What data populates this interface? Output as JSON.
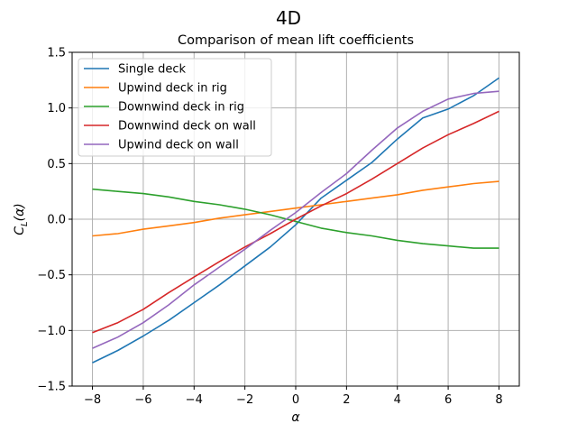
{
  "chart_data": {
    "type": "line",
    "suptitle": "4D",
    "title": "Comparison of mean lift coefficients",
    "xlabel": "α",
    "ylabel": "C_L(α)",
    "xlim": [
      -8.8,
      8.8
    ],
    "ylim": [
      -1.5,
      1.5
    ],
    "xticks": [
      -8,
      -6,
      -4,
      -2,
      0,
      2,
      4,
      6,
      8
    ],
    "xtick_labels": [
      "−8",
      "−6",
      "−4",
      "−2",
      "0",
      "2",
      "4",
      "6",
      "8"
    ],
    "yticks": [
      -1.5,
      -1.0,
      -0.5,
      0.0,
      0.5,
      1.0,
      1.5
    ],
    "ytick_labels": [
      "−1.5",
      "−1.0",
      "−0.5",
      "0.0",
      "0.5",
      "1.0",
      "1.5"
    ],
    "grid": true,
    "legend_position": "top-left",
    "x": [
      -8,
      -7,
      -6,
      -5,
      -4,
      -3,
      -2,
      -1,
      0,
      1,
      2,
      3,
      4,
      5,
      6,
      7,
      8
    ],
    "series": [
      {
        "name": "Single deck",
        "color": "#1f77b4",
        "values": [
          -1.29,
          -1.18,
          -1.05,
          -0.91,
          -0.75,
          -0.59,
          -0.42,
          -0.25,
          -0.05,
          0.19,
          0.35,
          0.51,
          0.72,
          0.91,
          0.99,
          1.11,
          1.27
        ]
      },
      {
        "name": "Upwind deck in rig",
        "color": "#ff7f0e",
        "values": [
          -0.15,
          -0.13,
          -0.09,
          -0.06,
          -0.03,
          0.01,
          0.04,
          0.07,
          0.1,
          0.13,
          0.16,
          0.19,
          0.22,
          0.26,
          0.29,
          0.32,
          0.34
        ]
      },
      {
        "name": "Downwind deck in rig",
        "color": "#2ca02c",
        "values": [
          0.27,
          0.25,
          0.23,
          0.2,
          0.16,
          0.13,
          0.09,
          0.04,
          -0.02,
          -0.08,
          -0.12,
          -0.15,
          -0.19,
          -0.22,
          -0.24,
          -0.26,
          -0.26
        ]
      },
      {
        "name": "Downwind deck on wall",
        "color": "#d62728",
        "values": [
          -1.02,
          -0.93,
          -0.81,
          -0.66,
          -0.52,
          -0.38,
          -0.25,
          -0.13,
          0.0,
          0.12,
          0.23,
          0.36,
          0.5,
          0.64,
          0.76,
          0.86,
          0.97
        ]
      },
      {
        "name": "Upwind deck on wall",
        "color": "#9467bd",
        "values": [
          -1.16,
          -1.06,
          -0.93,
          -0.77,
          -0.59,
          -0.43,
          -0.27,
          -0.1,
          0.06,
          0.24,
          0.41,
          0.62,
          0.82,
          0.97,
          1.08,
          1.13,
          1.15
        ]
      }
    ]
  }
}
